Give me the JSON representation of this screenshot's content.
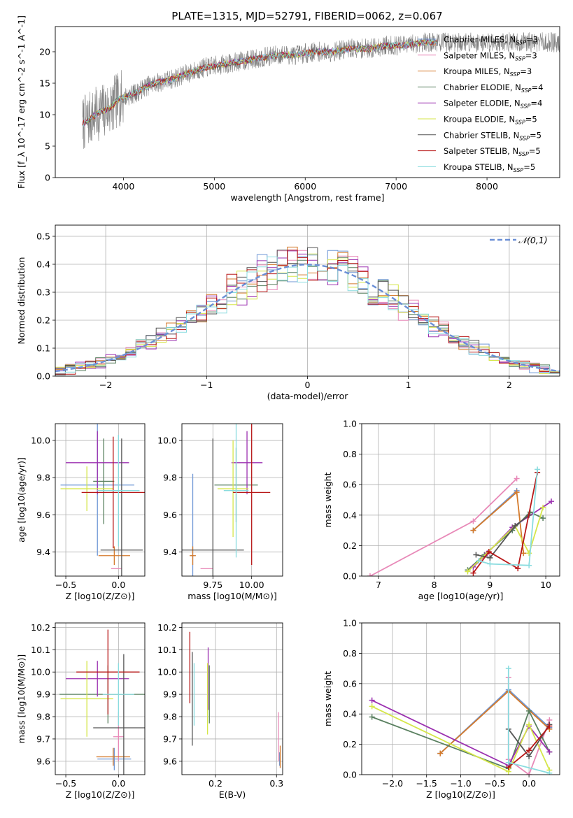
{
  "figure": {
    "title": "PLATE=1315, MJD=52791, FIBERID=0062, z=0.067"
  },
  "series_colors": {
    "Chabrier MILES": "#6f97d6",
    "Salpeter MILES": "#e889b8",
    "Kroupa MILES": "#d47a2b",
    "Chabrier ELODIE": "#5a8060",
    "Salpeter ELODIE": "#9b30b0",
    "Kroupa ELODIE": "#d5e649",
    "Chabrier STELIB": "#555555",
    "Salpeter STELIB": "#b81818",
    "Kroupa STELIB": "#8adcdf"
  },
  "chart_data": [
    {
      "id": "spectrum",
      "type": "line",
      "title": "PLATE=1315, MJD=52791, FIBERID=0062, z=0.067",
      "xlabel": "wavelength [Angstrom, rest frame]",
      "ylabel": "Flux [f_λ 10^-17 erg cm^-2 s^-1 A^-1]",
      "xlim": [
        3250,
        8800
      ],
      "ylim": [
        0,
        24
      ],
      "xticks": [
        4000,
        5000,
        6000,
        7000,
        8000
      ],
      "yticks": [
        0,
        5,
        10,
        15,
        20
      ],
      "grid": false,
      "legend_position": "bottom-right",
      "legend": [
        {
          "name": "Chabrier MILES",
          "label": "Chabrier MILES, N_SSP=3"
        },
        {
          "name": "Salpeter MILES",
          "label": "Salpeter MILES, N_SSP=3"
        },
        {
          "name": "Kroupa MILES",
          "label": "Kroupa MILES, N_SSP=3"
        },
        {
          "name": "Chabrier ELODIE",
          "label": "Chabrier ELODIE, N_SSP=4"
        },
        {
          "name": "Salpeter ELODIE",
          "label": "Salpeter ELODIE, N_SSP=4"
        },
        {
          "name": "Kroupa ELODIE",
          "label": "Kroupa ELODIE, N_SSP=5"
        },
        {
          "name": "Chabrier STELIB",
          "label": "Chabrier STELIB, N_SSP=5"
        },
        {
          "name": "Salpeter STELIB",
          "label": "Salpeter STELIB, N_SSP=5"
        },
        {
          "name": "Kroupa STELIB",
          "label": "Kroupa STELIB, N_SSP=5"
        }
      ],
      "data_color": "#808080",
      "continuum": {
        "wavelength": [
          3550,
          3650,
          3750,
          3850,
          3950,
          4050,
          4150,
          4250,
          4350,
          4500,
          4700,
          4900,
          5100,
          5300,
          5500,
          5700,
          5900,
          6100,
          6300,
          6500,
          6700,
          6900,
          7100,
          7300,
          7450
        ],
        "flux": [
          8.5,
          9.5,
          10.5,
          11.0,
          12.5,
          13.0,
          13.5,
          14.5,
          15.0,
          15.5,
          16.5,
          17.5,
          18.0,
          18.5,
          19.0,
          19.5,
          19.5,
          20.0,
          20.0,
          20.5,
          20.5,
          21.0,
          21.0,
          21.5,
          21.5
        ]
      },
      "data_range": [
        3550,
        8800
      ],
      "model_range": [
        3550,
        7450
      ]
    },
    {
      "id": "residuals",
      "type": "histogram",
      "xlabel": "(data-model)/error",
      "ylabel": "Normed distribution",
      "xlim": [
        -2.5,
        2.5
      ],
      "ylim": [
        0,
        0.54
      ],
      "xticks": [
        -2,
        -1,
        0,
        1,
        2
      ],
      "yticks": [
        0.0,
        0.1,
        0.2,
        0.3,
        0.4,
        0.5
      ],
      "grid": true,
      "legend_position": "top-right",
      "reference": {
        "label": "𝒩(0,1)",
        "mean": 0,
        "sigma": 1,
        "color": "#6a8fd6",
        "style": "dashed"
      },
      "bin_width": 0.1,
      "bin_start": -2.5
    },
    {
      "id": "age-vs-metallicity",
      "type": "errorbar",
      "xlabel": "Z [log10(Z/Z⊙)]",
      "ylabel": "age [log10(age/yr)]",
      "xlim": [
        -0.6,
        0.25
      ],
      "ylim": [
        9.27,
        10.09
      ],
      "xticks": [
        -0.5,
        0.0
      ],
      "xticklabels": [
        "−0.5",
        "0.0"
      ],
      "yticks": [
        9.4,
        9.6,
        9.8,
        10.0
      ],
      "grid": true,
      "points": [
        {
          "series": "Chabrier MILES",
          "x": -0.2,
          "xerr": 0.35,
          "y": 9.76,
          "yerr": 0.38
        },
        {
          "series": "Salpeter MILES",
          "x": -0.02,
          "xerr": 0.05,
          "y": 9.31,
          "yerr": 0.0
        },
        {
          "series": "Kroupa MILES",
          "x": -0.04,
          "xerr": 0.15,
          "y": 9.38,
          "yerr": 0.05
        },
        {
          "series": "Chabrier ELODIE",
          "x": -0.14,
          "xerr": 0.1,
          "y": 9.78,
          "yerr": 0.23
        },
        {
          "series": "Salpeter ELODIE",
          "x": -0.2,
          "xerr": 0.3,
          "y": 9.88,
          "yerr": 0.17
        },
        {
          "series": "Kroupa ELODIE",
          "x": -0.3,
          "xerr": 0.25,
          "y": 9.74,
          "yerr": 0.12
        },
        {
          "series": "Chabrier STELIB",
          "x": 0.03,
          "xerr": 0.2,
          "y": 9.41,
          "yerr": 0.6
        },
        {
          "series": "Salpeter STELIB",
          "x": -0.05,
          "xerr": 0.3,
          "y": 9.72,
          "yerr": 0.3
        },
        {
          "series": "Kroupa STELIB",
          "x": 0.0,
          "xerr": 0.2,
          "y": 9.73,
          "yerr": 0.3
        }
      ]
    },
    {
      "id": "age-vs-mass",
      "type": "errorbar",
      "xlabel": "mass [log10(M/M⊙)]",
      "ylabel": "",
      "xlim": [
        9.55,
        10.2
      ],
      "ylim": [
        9.27,
        10.09
      ],
      "xticks": [
        9.75,
        10.0
      ],
      "xticklabels": [
        "9.75",
        "10.00"
      ],
      "yticks": [
        9.4,
        9.6,
        9.8,
        10.0
      ],
      "grid": true,
      "points": [
        {
          "series": "Chabrier MILES",
          "x": 9.62,
          "xerr": 0.01,
          "y": 9.38,
          "yerr": 0.44
        },
        {
          "series": "Salpeter MILES",
          "x": 9.71,
          "xerr": 0.04,
          "y": 9.31,
          "yerr": 0.0
        },
        {
          "series": "Kroupa MILES",
          "x": 9.62,
          "xerr": 0.02,
          "y": 9.38,
          "yerr": 0.05
        },
        {
          "series": "Chabrier ELODIE",
          "x": 9.9,
          "xerr": 0.14,
          "y": 9.76,
          "yerr": 0.2
        },
        {
          "series": "Salpeter ELODIE",
          "x": 9.97,
          "xerr": 0.1,
          "y": 9.88,
          "yerr": 0.17
        },
        {
          "series": "Kroupa ELODIE",
          "x": 9.88,
          "xerr": 0.1,
          "y": 9.74,
          "yerr": 0.26
        },
        {
          "series": "Chabrier STELIB",
          "x": 9.75,
          "xerr": 0.2,
          "y": 9.41,
          "yerr": 0.6
        },
        {
          "series": "Salpeter STELIB",
          "x": 10.0,
          "xerr": 0.12,
          "y": 9.72,
          "yerr": 0.39
        },
        {
          "series": "Kroupa STELIB",
          "x": 9.9,
          "xerr": 0.08,
          "y": 9.73,
          "yerr": 0.36
        }
      ]
    },
    {
      "id": "weight-vs-age",
      "type": "line",
      "xlabel": "age [log10(age/yr)]",
      "ylabel": "mass weight",
      "xlim": [
        6.7,
        10.25
      ],
      "ylim": [
        0,
        1.0
      ],
      "xticks": [
        7,
        8,
        9,
        10
      ],
      "yticks": [
        0.0,
        0.2,
        0.4,
        0.6,
        0.8,
        1.0
      ],
      "grid": true,
      "series": [
        {
          "name": "Chabrier MILES",
          "x": [
            8.7,
            9.48
          ],
          "y": [
            0.3,
            0.56
          ]
        },
        {
          "name": "Salpeter MILES",
          "x": [
            6.85,
            8.7,
            9.48
          ],
          "y": [
            0.0,
            0.36,
            0.64
          ]
        },
        {
          "name": "Kroupa MILES",
          "x": [
            8.7,
            9.48,
            9.6
          ],
          "y": [
            0.3,
            0.55,
            0.15
          ]
        },
        {
          "name": "Chabrier ELODIE",
          "x": [
            8.6,
            8.9,
            9.4,
            9.72,
            9.95
          ],
          "y": [
            0.04,
            0.14,
            0.3,
            0.42,
            0.38
          ]
        },
        {
          "name": "Salpeter ELODIE",
          "x": [
            8.7,
            8.95,
            9.4,
            10.1
          ],
          "y": [
            0.06,
            0.15,
            0.32,
            0.49
          ]
        },
        {
          "name": "Kroupa ELODIE",
          "x": [
            8.6,
            9.45,
            9.7,
            9.95
          ],
          "y": [
            0.03,
            0.33,
            0.15,
            0.45
          ]
        },
        {
          "name": "Chabrier STELIB",
          "x": [
            8.75,
            9.0,
            9.45,
            9.7
          ],
          "y": [
            0.14,
            0.12,
            0.33,
            0.4
          ]
        },
        {
          "name": "Salpeter STELIB",
          "x": [
            8.7,
            8.98,
            9.5,
            9.85
          ],
          "y": [
            0.02,
            0.16,
            0.05,
            0.68
          ]
        },
        {
          "name": "Kroupa STELIB",
          "x": [
            8.8,
            9.0,
            9.7,
            9.85
          ],
          "y": [
            0.1,
            0.08,
            0.07,
            0.7
          ]
        }
      ]
    },
    {
      "id": "mass-vs-metallicity",
      "type": "errorbar",
      "xlabel": "Z [log10(Z/Z⊙)]",
      "ylabel": "mass [log10(M/M⊙)]",
      "xlim": [
        -0.6,
        0.25
      ],
      "ylim": [
        9.54,
        10.22
      ],
      "xticks": [
        -0.5,
        0.0
      ],
      "xticklabels": [
        "−0.5",
        "0.0"
      ],
      "yticks": [
        9.6,
        9.7,
        9.8,
        9.9,
        10.0,
        10.1,
        10.2
      ],
      "grid": true,
      "points": [
        {
          "series": "Chabrier MILES",
          "x": -0.04,
          "xerr": 0.16,
          "y": 9.61,
          "yerr": 0.05
        },
        {
          "series": "Salpeter MILES",
          "x": 0.0,
          "xerr": 0.05,
          "y": 9.71,
          "yerr": 0.11
        },
        {
          "series": "Kroupa MILES",
          "x": -0.05,
          "xerr": 0.16,
          "y": 9.62,
          "yerr": 0.04
        },
        {
          "series": "Chabrier ELODIE",
          "x": -0.1,
          "xerr": 0.46,
          "y": 9.9,
          "yerr": 0.13
        },
        {
          "series": "Salpeter ELODIE",
          "x": -0.2,
          "xerr": 0.3,
          "y": 9.97,
          "yerr": 0.08
        },
        {
          "series": "Kroupa ELODIE",
          "x": -0.3,
          "xerr": 0.25,
          "y": 9.88,
          "yerr": 0.17
        },
        {
          "series": "Chabrier STELIB",
          "x": 0.05,
          "xerr": 0.29,
          "y": 9.75,
          "yerr": 0.33
        },
        {
          "series": "Salpeter STELIB",
          "x": -0.1,
          "xerr": 0.3,
          "y": 10.0,
          "yerr": 0.19
        },
        {
          "series": "Kroupa STELIB",
          "x": 0.0,
          "xerr": 0.15,
          "y": 9.9,
          "yerr": 0.14
        }
      ]
    },
    {
      "id": "mass-vs-ebv",
      "type": "errorbar",
      "xlabel": "E(B-V)",
      "ylabel": "",
      "xlim": [
        0.145,
        0.31
      ],
      "ylim": [
        9.54,
        10.22
      ],
      "xticks": [
        0.2,
        0.3
      ],
      "xticklabels": [
        "0.2",
        "0.3"
      ],
      "yticks": [
        9.6,
        9.7,
        9.8,
        9.9,
        10.0,
        10.1,
        10.2
      ],
      "grid": true,
      "points": [
        {
          "series": "Chabrier MILES",
          "x": 0.305,
          "xerr": 0.0,
          "y": 9.61,
          "yerr": 0.03
        },
        {
          "series": "Salpeter MILES",
          "x": 0.303,
          "xerr": 0.0,
          "y": 9.71,
          "yerr": 0.11
        },
        {
          "series": "Kroupa MILES",
          "x": 0.306,
          "xerr": 0.0,
          "y": 9.62,
          "yerr": 0.05
        },
        {
          "series": "Chabrier ELODIE",
          "x": 0.19,
          "xerr": 0.0,
          "y": 9.9,
          "yerr": 0.13
        },
        {
          "series": "Salpeter ELODIE",
          "x": 0.188,
          "xerr": 0.0,
          "y": 9.97,
          "yerr": 0.14
        },
        {
          "series": "Kroupa ELODIE",
          "x": 0.187,
          "xerr": 0.0,
          "y": 9.88,
          "yerr": 0.16
        },
        {
          "series": "Chabrier STELIB",
          "x": 0.162,
          "xerr": 0.0,
          "y": 9.88,
          "yerr": 0.21
        },
        {
          "series": "Salpeter STELIB",
          "x": 0.158,
          "xerr": 0.0,
          "y": 10.02,
          "yerr": 0.16
        },
        {
          "series": "Kroupa STELIB",
          "x": 0.165,
          "xerr": 0.0,
          "y": 9.9,
          "yerr": 0.14
        }
      ]
    },
    {
      "id": "weight-vs-metallicity",
      "type": "line",
      "xlabel": "Z [log10(Z/Z⊙)]",
      "ylabel": "mass weight",
      "xlim": [
        -2.45,
        0.45
      ],
      "ylim": [
        0,
        1.0
      ],
      "xticks": [
        -2.0,
        -1.5,
        -1.0,
        -0.5,
        0.0
      ],
      "xticklabels": [
        "−2.0",
        "−1.5",
        "−1.0",
        "−0.5",
        "0.0"
      ],
      "yticks": [
        0.0,
        0.2,
        0.4,
        0.6,
        0.8,
        1.0
      ],
      "grid": true,
      "series": [
        {
          "name": "Chabrier MILES",
          "x": [
            -1.3,
            -0.3,
            0.3
          ],
          "y": [
            0.14,
            0.56,
            0.31
          ]
        },
        {
          "name": "Salpeter MILES",
          "x": [
            -0.3,
            -0.3,
            0.0,
            0.3
          ],
          "y": [
            0.64,
            0.1,
            0.0,
            0.36
          ]
        },
        {
          "name": "Kroupa MILES",
          "x": [
            -1.3,
            -0.3,
            0.3
          ],
          "y": [
            0.14,
            0.55,
            0.3
          ]
        },
        {
          "name": "Chabrier ELODIE",
          "x": [
            -2.3,
            -0.3,
            0.0,
            0.3
          ],
          "y": [
            0.38,
            0.04,
            0.42,
            0.15
          ]
        },
        {
          "name": "Salpeter ELODIE",
          "x": [
            -2.3,
            -0.3,
            0.0,
            0.3
          ],
          "y": [
            0.49,
            0.06,
            0.32,
            0.15
          ]
        },
        {
          "name": "Kroupa ELODIE",
          "x": [
            -2.3,
            -0.3,
            0.0,
            0.3
          ],
          "y": [
            0.45,
            0.02,
            0.33,
            0.03
          ]
        },
        {
          "name": "Chabrier STELIB",
          "x": [
            -0.3,
            0.0,
            0.3
          ],
          "y": [
            0.3,
            0.12,
            0.33
          ]
        },
        {
          "name": "Salpeter STELIB",
          "x": [
            -0.3,
            0.0,
            0.3
          ],
          "y": [
            0.05,
            0.16,
            0.32
          ]
        },
        {
          "name": "Kroupa STELIB",
          "x": [
            -0.3,
            -0.3,
            0.3
          ],
          "y": [
            0.7,
            0.08,
            0.01
          ]
        }
      ]
    }
  ]
}
